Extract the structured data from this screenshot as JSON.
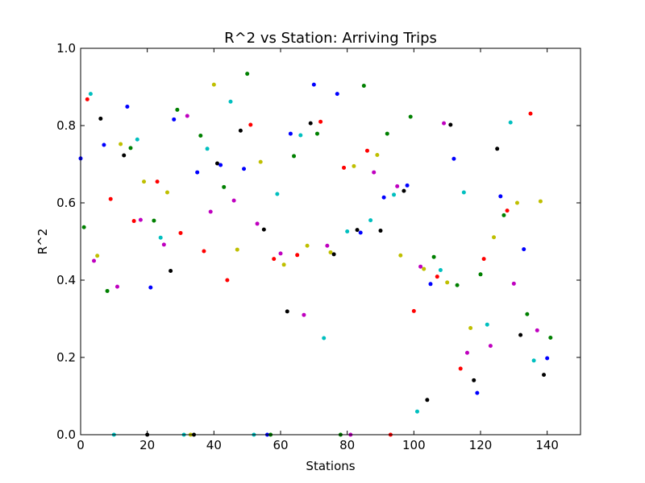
{
  "chart_data": {
    "type": "scatter",
    "title": "R^2 vs Station: Arriving Trips",
    "xlabel": "Stations",
    "ylabel": "R^2",
    "xlim": [
      0,
      150
    ],
    "ylim": [
      0.0,
      1.0
    ],
    "xticks": [
      0,
      20,
      40,
      60,
      80,
      100,
      120,
      140
    ],
    "yticks": [
      0.0,
      0.2,
      0.4,
      0.6,
      0.8,
      1.0
    ],
    "xtick_labels": [
      "0",
      "20",
      "40",
      "60",
      "80",
      "100",
      "120",
      "140"
    ],
    "ytick_labels": [
      "0.0",
      "0.2",
      "0.4",
      "0.6",
      "0.8",
      "1.0"
    ],
    "grid": false,
    "color_cycle": [
      "#0000ff",
      "#008000",
      "#ff0000",
      "#00bfbf",
      "#bf00bf",
      "#bfbf00",
      "#000000"
    ],
    "points": {
      "x": [
        0,
        1,
        2,
        3,
        4,
        5,
        6,
        7,
        8,
        9,
        10,
        11,
        12,
        13,
        14,
        15,
        16,
        17,
        18,
        19,
        20,
        21,
        22,
        23,
        24,
        25,
        26,
        27,
        28,
        29,
        30,
        31,
        32,
        33,
        34,
        35,
        36,
        37,
        38,
        39,
        40,
        41,
        42,
        43,
        44,
        45,
        46,
        47,
        48,
        49,
        50,
        51,
        52,
        53,
        54,
        55,
        56,
        57,
        58,
        59,
        60,
        61,
        62,
        63,
        64,
        65,
        66,
        67,
        68,
        69,
        70,
        71,
        72,
        73,
        74,
        75,
        76,
        77,
        78,
        79,
        80,
        81,
        82,
        83,
        84,
        85,
        86,
        87,
        88,
        89,
        90,
        91,
        92,
        93,
        94,
        95,
        96,
        97,
        98,
        99,
        100,
        101,
        102,
        103,
        104,
        105,
        106,
        107,
        108,
        109,
        110,
        111,
        112,
        113,
        114,
        115,
        116,
        117,
        118,
        119,
        120,
        121,
        122,
        123,
        124,
        125,
        126,
        127,
        128,
        129,
        130,
        131,
        132,
        133,
        134,
        135,
        136,
        137,
        138,
        139,
        140,
        141
      ],
      "y": [
        0.715,
        0.537,
        0.868,
        0.882,
        0.45,
        0.463,
        0.818,
        0.75,
        0.372,
        0.61,
        0.0,
        0.383,
        0.752,
        0.723,
        0.849,
        0.742,
        0.553,
        0.764,
        0.556,
        0.655,
        0.0,
        0.381,
        0.554,
        0.655,
        0.51,
        0.492,
        0.627,
        0.424,
        0.816,
        0.841,
        0.522,
        0.0,
        0.825,
        0.0,
        0.0,
        0.679,
        0.774,
        0.475,
        0.74,
        0.577,
        0.906,
        0.702,
        0.698,
        0.641,
        0.4,
        0.862,
        0.606,
        0.479,
        0.787,
        0.688,
        0.934,
        0.802,
        0.0,
        0.546,
        0.706,
        0.531,
        0.0,
        0.0,
        0.455,
        0.623,
        0.469,
        0.44,
        0.319,
        0.779,
        0.721,
        0.465,
        0.775,
        0.31,
        0.489,
        0.806,
        0.906,
        0.779,
        0.81,
        0.25,
        0.489,
        0.472,
        0.467,
        0.882,
        0.0,
        0.691,
        0.526,
        0.0,
        0.695,
        0.53,
        0.523,
        0.903,
        0.735,
        0.555,
        0.679,
        0.724,
        0.528,
        0.614,
        0.779,
        0.0,
        0.621,
        0.643,
        0.464,
        0.631,
        0.645,
        0.823,
        0.32,
        0.06,
        0.435,
        0.429,
        0.09,
        0.39,
        0.46,
        0.409,
        0.426,
        0.806,
        0.394,
        0.802,
        0.714,
        0.387,
        0.171,
        0.627,
        0.212,
        0.276,
        0.141,
        0.108,
        0.415,
        0.455,
        0.285,
        0.23,
        0.511,
        0.74,
        0.617,
        0.568,
        0.58,
        0.808,
        0.391,
        0.6,
        0.258,
        0.48,
        0.312,
        0.831,
        0.192,
        0.27,
        0.604,
        0.155,
        0.198,
        0.251
      ]
    }
  }
}
